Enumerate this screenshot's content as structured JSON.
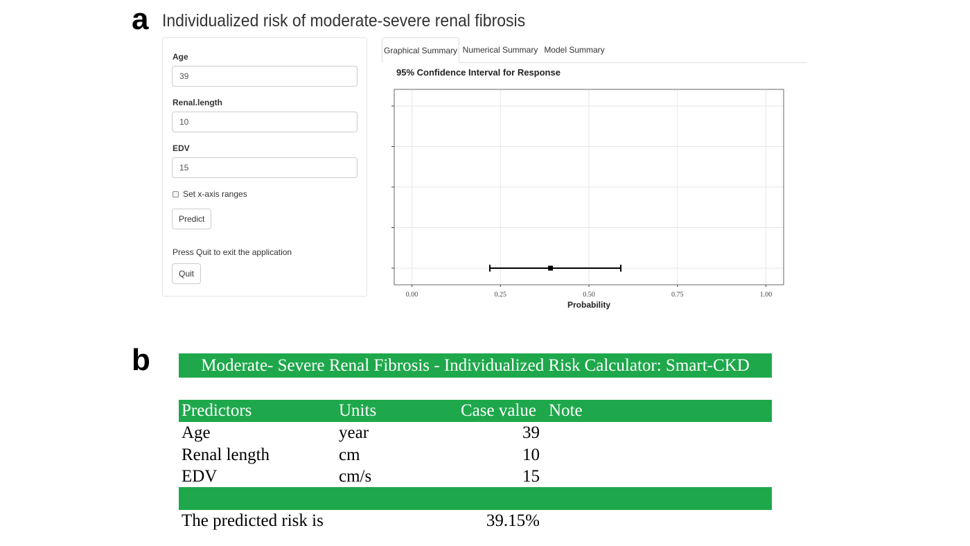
{
  "panel_a": {
    "letter": "a",
    "title": "Individualized risk of moderate-severe renal fibrosis",
    "sidebar": {
      "fields": [
        {
          "label": "Age",
          "value": "39"
        },
        {
          "label": "Renal.length",
          "value": "10"
        },
        {
          "label": "EDV",
          "value": "15"
        }
      ],
      "checkbox_label": "Set x-axis ranges",
      "predict_label": "Predict",
      "quit_help": "Press Quit to exit the application",
      "quit_label": "Quit"
    },
    "tabs": [
      {
        "label": "Graphical Summary",
        "active": true
      },
      {
        "label": "Numerical Summary",
        "active": false
      },
      {
        "label": "Model Summary",
        "active": false
      }
    ]
  },
  "chart_data": {
    "type": "scatter",
    "title": "95% Confidence Interval for Response",
    "xlabel": "Probability",
    "ylabel": "",
    "xlim": [
      -0.05,
      1.05
    ],
    "xticks": [
      "0.00",
      "0.25",
      "0.50",
      "0.75",
      "1.00"
    ],
    "xtick_values": [
      0,
      0.25,
      0.5,
      0.75,
      1.0
    ],
    "grid": true,
    "point": {
      "estimate": 0.3915,
      "lower": 0.22,
      "upper": 0.59
    },
    "colors": {
      "point": "#000000",
      "grid": "#e6e6e6",
      "frame": "#666666"
    }
  },
  "panel_b": {
    "letter": "b",
    "title": "Moderate- Severe Renal Fibrosis - Individualized Risk Calculator: Smart-CKD",
    "headers": {
      "predictors": "Predictors",
      "units": "Units",
      "case_value": "Case value",
      "note": "Note"
    },
    "rows": [
      {
        "predictor": "Age",
        "unit": "year",
        "value": "39"
      },
      {
        "predictor": "Renal length",
        "unit": "cm",
        "value": "10"
      },
      {
        "predictor": "EDV",
        "unit": "cm/s",
        "value": "15"
      }
    ],
    "result_label": "The predicted risk is",
    "result_value": "39.15%",
    "accent_color": "#1ea84b"
  }
}
